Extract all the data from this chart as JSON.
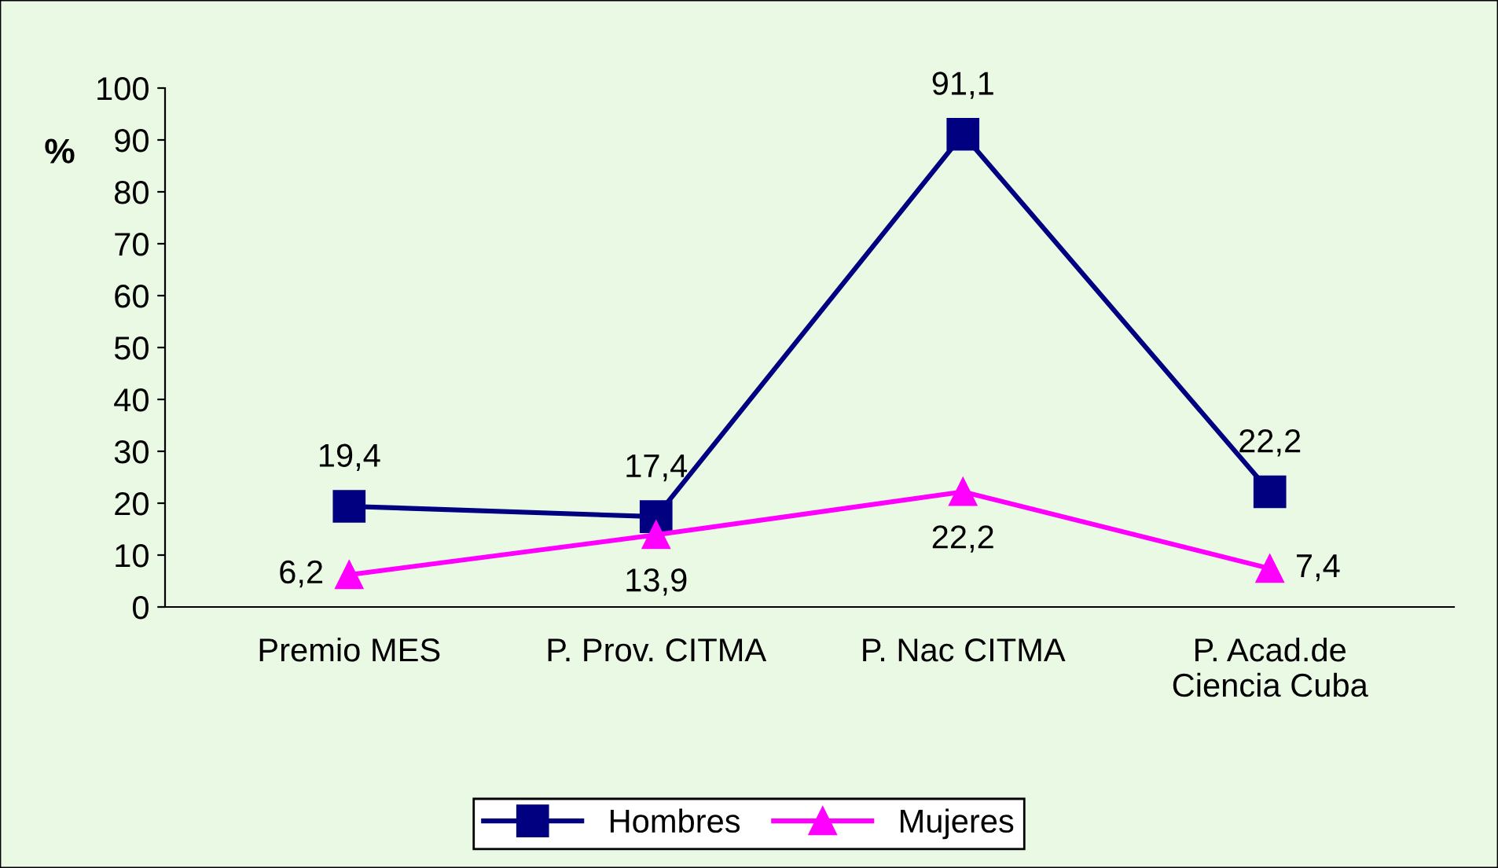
{
  "chart_data": {
    "type": "line",
    "ylabel": "%",
    "categories": [
      "Premio MES",
      "P. Prov. CITMA",
      "P. Nac CITMA",
      "P. Acad.de\nCiencia Cuba"
    ],
    "series": [
      {
        "name": "Hombres",
        "color": "#000080",
        "values": [
          19.4,
          17.4,
          91.1,
          22.2
        ],
        "marker": "square",
        "value_labels": [
          "19,4",
          "17,4",
          "91,1",
          "22,2"
        ]
      },
      {
        "name": "Mujeres",
        "color": "#ff00ff",
        "values": [
          6.2,
          13.9,
          22.2,
          7.4
        ],
        "marker": "triangle",
        "value_labels": [
          "6,2",
          "13,9",
          "22,2",
          "7,4"
        ]
      }
    ],
    "ylim": [
      0,
      100
    ],
    "yticks": [
      0,
      10,
      20,
      30,
      40,
      50,
      60,
      70,
      80,
      90,
      100
    ],
    "grid": false,
    "legend": "bottom",
    "line_style": "solid"
  }
}
